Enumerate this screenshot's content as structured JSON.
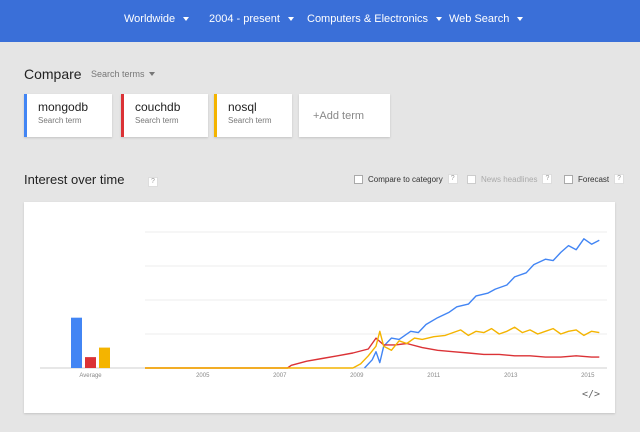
{
  "filters": [
    {
      "label": "Worldwide"
    },
    {
      "label": "2004 - present"
    },
    {
      "label": "Computers & Electronics"
    },
    {
      "label": "Web Search"
    }
  ],
  "compare": {
    "title": "Compare",
    "search_terms": "Search terms"
  },
  "terms": [
    {
      "name": "mongodb",
      "sub": "Search term",
      "color": "#4285f4"
    },
    {
      "name": "couchdb",
      "sub": "Search term",
      "color": "#db3236"
    },
    {
      "name": "nosql",
      "sub": "Search term",
      "color": "#f4b400"
    }
  ],
  "add_term": "+Add term",
  "interest": {
    "title": "Interest over time",
    "help": "?"
  },
  "options": [
    {
      "label": "Compare to category",
      "checked": false,
      "enabled": true
    },
    {
      "label": "News headlines",
      "checked": false,
      "enabled": false
    },
    {
      "label": "Forecast",
      "checked": false,
      "enabled": true
    }
  ],
  "embed_icon": "</>",
  "chart_data": {
    "type": "line",
    "x_ticks": [
      "2005",
      "2007",
      "2009",
      "2011",
      "2013",
      "2015"
    ],
    "xlim": [
      2004,
      2016
    ],
    "ylim": [
      0,
      100
    ],
    "grid": true,
    "average_label": "Average",
    "averages": [
      {
        "term": "mongodb",
        "value": 37
      },
      {
        "term": "couchdb",
        "value": 8
      },
      {
        "term": "nosql",
        "value": 15
      }
    ],
    "series": [
      {
        "name": "mongodb",
        "color": "#4285f4",
        "points": [
          [
            2009.7,
            0
          ],
          [
            2009.9,
            6
          ],
          [
            2010.0,
            12
          ],
          [
            2010.1,
            4
          ],
          [
            2010.2,
            16
          ],
          [
            2010.4,
            22
          ],
          [
            2010.6,
            21
          ],
          [
            2010.9,
            27
          ],
          [
            2011.1,
            26
          ],
          [
            2011.3,
            32
          ],
          [
            2011.6,
            37
          ],
          [
            2011.9,
            41
          ],
          [
            2012.1,
            45
          ],
          [
            2012.4,
            47
          ],
          [
            2012.6,
            53
          ],
          [
            2012.9,
            55
          ],
          [
            2013.1,
            58
          ],
          [
            2013.4,
            61
          ],
          [
            2013.6,
            67
          ],
          [
            2013.9,
            70
          ],
          [
            2014.1,
            76
          ],
          [
            2014.4,
            80
          ],
          [
            2014.6,
            79
          ],
          [
            2014.8,
            85
          ],
          [
            2015.0,
            90
          ],
          [
            2015.2,
            87
          ],
          [
            2015.4,
            95
          ],
          [
            2015.6,
            91
          ],
          [
            2015.8,
            94
          ]
        ]
      },
      {
        "name": "couchdb",
        "color": "#db3236",
        "points": [
          [
            2004.0,
            0
          ],
          [
            2007.7,
            0
          ],
          [
            2007.8,
            2
          ],
          [
            2008.2,
            5
          ],
          [
            2008.6,
            7
          ],
          [
            2009.0,
            9
          ],
          [
            2009.4,
            11
          ],
          [
            2009.8,
            14
          ],
          [
            2010.0,
            22
          ],
          [
            2010.2,
            17
          ],
          [
            2010.5,
            17
          ],
          [
            2010.8,
            18
          ],
          [
            2011.2,
            15
          ],
          [
            2011.6,
            13
          ],
          [
            2012.0,
            12
          ],
          [
            2012.4,
            11
          ],
          [
            2012.8,
            10
          ],
          [
            2013.2,
            10
          ],
          [
            2013.6,
            9
          ],
          [
            2014.0,
            9
          ],
          [
            2014.4,
            8
          ],
          [
            2014.8,
            8
          ],
          [
            2015.2,
            9
          ],
          [
            2015.6,
            8
          ],
          [
            2015.8,
            8
          ]
        ]
      },
      {
        "name": "nosql",
        "color": "#f4b400",
        "points": [
          [
            2004.0,
            0
          ],
          [
            2009.4,
            0
          ],
          [
            2009.6,
            3
          ],
          [
            2009.8,
            9
          ],
          [
            2010.0,
            16
          ],
          [
            2010.1,
            27
          ],
          [
            2010.2,
            16
          ],
          [
            2010.4,
            13
          ],
          [
            2010.6,
            20
          ],
          [
            2010.8,
            18
          ],
          [
            2011.0,
            22
          ],
          [
            2011.2,
            21
          ],
          [
            2011.5,
            23
          ],
          [
            2011.8,
            24
          ],
          [
            2012.0,
            26
          ],
          [
            2012.2,
            28
          ],
          [
            2012.4,
            24
          ],
          [
            2012.6,
            27
          ],
          [
            2012.8,
            26
          ],
          [
            2013.0,
            29
          ],
          [
            2013.2,
            25
          ],
          [
            2013.4,
            27
          ],
          [
            2013.6,
            30
          ],
          [
            2013.8,
            26
          ],
          [
            2014.0,
            28
          ],
          [
            2014.2,
            25
          ],
          [
            2014.4,
            27
          ],
          [
            2014.6,
            29
          ],
          [
            2014.8,
            25
          ],
          [
            2015.0,
            27
          ],
          [
            2015.2,
            28
          ],
          [
            2015.4,
            24
          ],
          [
            2015.6,
            27
          ],
          [
            2015.8,
            26
          ]
        ]
      }
    ]
  }
}
